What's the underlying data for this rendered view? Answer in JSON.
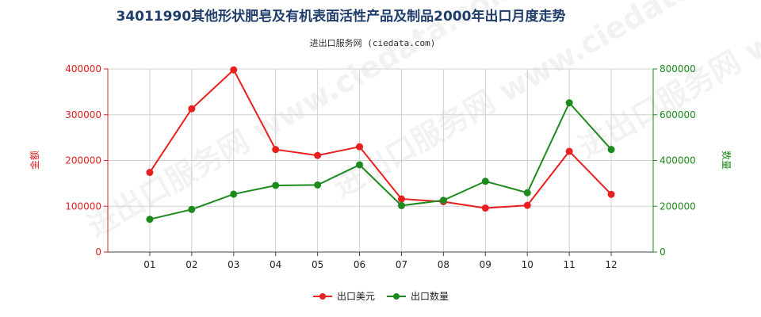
{
  "chart_data": {
    "type": "line",
    "title": "34011990其他形状肥皂及有机表面活性产品及制品2000年出口月度走势",
    "subtitle": "进出口服务网 (ciedata.com)",
    "categories": [
      "01",
      "02",
      "03",
      "04",
      "05",
      "06",
      "07",
      "08",
      "09",
      "10",
      "11",
      "12"
    ],
    "y_left": {
      "label": "金额",
      "ylim": [
        0,
        400000
      ],
      "ticks": [
        0,
        100000,
        200000,
        300000,
        400000
      ]
    },
    "y_right": {
      "label": "数量",
      "ylim": [
        0,
        800000
      ],
      "ticks": [
        0,
        200000,
        400000,
        600000,
        800000
      ]
    },
    "series": [
      {
        "name": "出口美元",
        "axis": "left",
        "color": "#e82020",
        "values": [
          174000,
          313000,
          398000,
          224000,
          211000,
          230000,
          116000,
          110000,
          96000,
          102000,
          220000,
          126000
        ]
      },
      {
        "name": "出口数量",
        "axis": "right",
        "color": "#1c8a1c",
        "values": [
          143000,
          186000,
          253000,
          291000,
          293000,
          381000,
          203000,
          226000,
          309000,
          259000,
          652000,
          448000
        ]
      }
    ],
    "grid": true,
    "legend_position": "bottom-center",
    "watermark": "进出口服务网 www.ciedata.com"
  }
}
